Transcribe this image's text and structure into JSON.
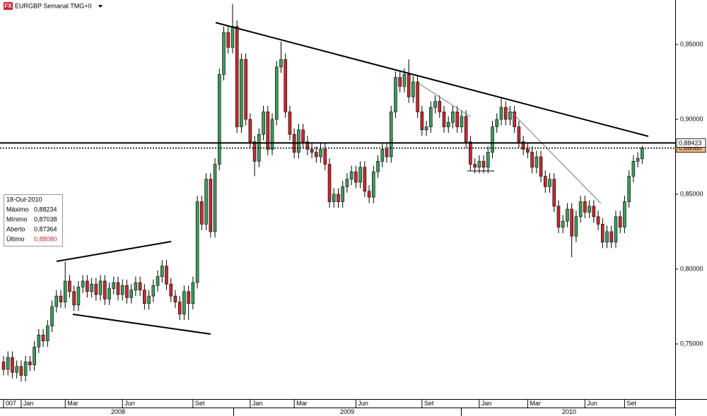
{
  "chart_data": {
    "type": "candlestick",
    "logo": "FX",
    "title": "EURGBP Semanal TMG+0",
    "categories": [
      "007",
      null,
      null,
      null,
      "Jan",
      null,
      null,
      null,
      null,
      null,
      null,
      null,
      null,
      null,
      "Mar",
      null,
      null,
      null,
      null,
      null,
      null,
      null,
      null,
      null,
      null,
      null,
      null,
      "Jun",
      null,
      null,
      null,
      null,
      null,
      null,
      null,
      null,
      null,
      null,
      null,
      null,
      null,
      null,
      null,
      "Set",
      null,
      null,
      null,
      null,
      null,
      null,
      null,
      null,
      null,
      null,
      null,
      null,
      "Jan",
      null,
      null,
      null,
      null,
      null,
      null,
      null,
      null,
      null,
      "Mar",
      null,
      null,
      null,
      null,
      null,
      null,
      null,
      null,
      null,
      null,
      null,
      null,
      null,
      "Jun",
      null,
      null,
      null,
      null,
      null,
      null,
      null,
      null,
      null,
      null,
      null,
      null,
      null,
      null,
      "Set",
      null,
      null,
      null,
      null,
      null,
      null,
      null,
      null,
      null,
      null,
      null,
      null,
      "Jan",
      null,
      null,
      null,
      null,
      null,
      null,
      null,
      null,
      null,
      null,
      "Mar",
      null,
      null,
      null,
      null,
      null,
      null,
      null,
      null,
      null,
      null,
      null,
      null,
      "Jun",
      null,
      null,
      null,
      null,
      null,
      null,
      null,
      null,
      "Set",
      null,
      null,
      null,
      null
    ],
    "years": [
      "2008",
      "2009",
      "2010"
    ],
    "open": [
      0.738,
      0.733,
      0.741,
      0.731,
      0.735,
      0.729,
      0.738,
      0.736,
      0.748,
      0.756,
      0.752,
      0.762,
      0.775,
      0.782,
      0.778,
      0.792,
      0.785,
      0.776,
      0.788,
      0.792,
      0.785,
      0.79,
      0.783,
      0.792,
      0.78,
      0.787,
      0.791,
      0.783,
      0.789,
      0.781,
      0.786,
      0.791,
      0.786,
      0.777,
      0.782,
      0.789,
      0.795,
      0.802,
      0.79,
      0.782,
      0.778,
      0.77,
      0.785,
      0.777,
      0.791,
      0.845,
      0.83,
      0.86,
      0.825,
      0.87,
      0.93,
      0.958,
      0.948,
      0.962,
      0.895,
      0.94,
      0.9,
      0.885,
      0.872,
      0.89,
      0.905,
      0.88,
      0.9,
      0.935,
      0.94,
      0.905,
      0.89,
      0.878,
      0.893,
      0.885,
      0.88,
      0.878,
      0.875,
      0.88,
      0.87,
      0.845,
      0.85,
      0.845,
      0.855,
      0.86,
      0.865,
      0.858,
      0.868,
      0.852,
      0.848,
      0.865,
      0.872,
      0.88,
      0.875,
      0.905,
      0.928,
      0.922,
      0.93,
      0.915,
      0.925,
      0.905,
      0.893,
      0.895,
      0.908,
      0.912,
      0.905,
      0.895,
      0.898,
      0.905,
      0.895,
      0.902,
      0.885,
      0.87,
      0.868,
      0.872,
      0.868,
      0.878,
      0.895,
      0.9,
      0.908,
      0.9,
      0.905,
      0.895,
      0.885,
      0.88,
      0.878,
      0.868,
      0.875,
      0.862,
      0.855,
      0.86,
      0.842,
      0.828,
      0.832,
      0.84,
      0.822,
      0.835,
      0.845,
      0.838,
      0.842,
      0.835,
      0.83,
      0.818,
      0.825,
      0.818,
      0.835,
      0.828,
      0.845,
      0.862,
      0.872,
      0.87364
    ],
    "high": [
      0.742,
      0.745,
      0.745,
      0.739,
      0.739,
      0.742,
      0.742,
      0.752,
      0.76,
      0.76,
      0.766,
      0.779,
      0.786,
      0.786,
      0.805,
      0.796,
      0.789,
      0.792,
      0.796,
      0.796,
      0.794,
      0.794,
      0.796,
      0.796,
      0.791,
      0.795,
      0.795,
      0.793,
      0.793,
      0.79,
      0.795,
      0.795,
      0.79,
      0.786,
      0.793,
      0.799,
      0.806,
      0.806,
      0.794,
      0.786,
      0.782,
      0.789,
      0.789,
      0.795,
      0.849,
      0.849,
      0.864,
      0.864,
      0.874,
      0.934,
      0.962,
      0.962,
      0.977,
      0.966,
      0.944,
      0.944,
      0.904,
      0.889,
      0.894,
      0.909,
      0.909,
      0.904,
      0.939,
      0.952,
      0.944,
      0.909,
      0.894,
      0.897,
      0.897,
      0.889,
      0.884,
      0.882,
      0.884,
      0.884,
      0.874,
      0.854,
      0.854,
      0.859,
      0.864,
      0.869,
      0.869,
      0.872,
      0.872,
      0.856,
      0.869,
      0.876,
      0.884,
      0.884,
      0.909,
      0.932,
      0.932,
      0.934,
      0.94,
      0.929,
      0.929,
      0.909,
      0.899,
      0.912,
      0.916,
      0.916,
      0.909,
      0.902,
      0.909,
      0.909,
      0.906,
      0.906,
      0.889,
      0.874,
      0.876,
      0.876,
      0.882,
      0.899,
      0.904,
      0.915,
      0.912,
      0.909,
      0.909,
      0.899,
      0.889,
      0.884,
      0.882,
      0.879,
      0.879,
      0.866,
      0.864,
      0.864,
      0.846,
      0.836,
      0.844,
      0.844,
      0.839,
      0.849,
      0.849,
      0.846,
      0.846,
      0.839,
      0.834,
      0.829,
      0.829,
      0.839,
      0.839,
      0.849,
      0.866,
      0.876,
      0.878,
      0.88234
    ],
    "low": [
      0.729,
      0.729,
      0.727,
      0.727,
      0.725,
      0.725,
      0.732,
      0.732,
      0.744,
      0.748,
      0.748,
      0.758,
      0.771,
      0.774,
      0.774,
      0.781,
      0.772,
      0.772,
      0.784,
      0.781,
      0.781,
      0.779,
      0.779,
      0.776,
      0.776,
      0.783,
      0.779,
      0.779,
      0.777,
      0.777,
      0.782,
      0.782,
      0.773,
      0.773,
      0.778,
      0.785,
      0.791,
      0.786,
      0.778,
      0.774,
      0.766,
      0.766,
      0.766,
      0.773,
      0.787,
      0.826,
      0.826,
      0.821,
      0.821,
      0.866,
      0.926,
      0.944,
      0.944,
      0.891,
      0.891,
      0.896,
      0.881,
      0.862,
      0.868,
      0.886,
      0.876,
      0.876,
      0.896,
      0.931,
      0.901,
      0.886,
      0.874,
      0.874,
      0.881,
      0.876,
      0.874,
      0.871,
      0.871,
      0.866,
      0.841,
      0.841,
      0.841,
      0.841,
      0.851,
      0.856,
      0.854,
      0.854,
      0.848,
      0.844,
      0.844,
      0.861,
      0.868,
      0.871,
      0.871,
      0.901,
      0.918,
      0.918,
      0.911,
      0.911,
      0.901,
      0.889,
      0.889,
      0.891,
      0.904,
      0.901,
      0.891,
      0.891,
      0.894,
      0.891,
      0.891,
      0.881,
      0.866,
      0.864,
      0.864,
      0.864,
      0.864,
      0.874,
      0.891,
      0.896,
      0.896,
      0.896,
      0.891,
      0.881,
      0.876,
      0.874,
      0.864,
      0.864,
      0.858,
      0.851,
      0.851,
      0.838,
      0.824,
      0.824,
      0.828,
      0.808,
      0.818,
      0.831,
      0.834,
      0.834,
      0.831,
      0.826,
      0.814,
      0.814,
      0.814,
      0.814,
      0.824,
      0.824,
      0.841,
      0.858,
      0.868,
      0.87038
    ],
    "close": [
      0.733,
      0.741,
      0.731,
      0.735,
      0.729,
      0.738,
      0.736,
      0.748,
      0.756,
      0.752,
      0.762,
      0.775,
      0.782,
      0.778,
      0.792,
      0.785,
      0.776,
      0.788,
      0.792,
      0.785,
      0.79,
      0.783,
      0.792,
      0.78,
      0.787,
      0.791,
      0.783,
      0.789,
      0.781,
      0.786,
      0.791,
      0.786,
      0.777,
      0.782,
      0.789,
      0.795,
      0.802,
      0.79,
      0.782,
      0.778,
      0.77,
      0.785,
      0.777,
      0.791,
      0.845,
      0.83,
      0.86,
      0.825,
      0.87,
      0.93,
      0.958,
      0.948,
      0.962,
      0.895,
      0.94,
      0.9,
      0.885,
      0.872,
      0.89,
      0.905,
      0.88,
      0.9,
      0.935,
      0.94,
      0.905,
      0.89,
      0.878,
      0.893,
      0.885,
      0.88,
      0.878,
      0.875,
      0.88,
      0.87,
      0.845,
      0.85,
      0.845,
      0.855,
      0.86,
      0.865,
      0.858,
      0.868,
      0.852,
      0.848,
      0.865,
      0.872,
      0.88,
      0.875,
      0.905,
      0.928,
      0.922,
      0.93,
      0.915,
      0.925,
      0.905,
      0.893,
      0.895,
      0.908,
      0.912,
      0.905,
      0.895,
      0.898,
      0.905,
      0.895,
      0.902,
      0.885,
      0.87,
      0.868,
      0.872,
      0.868,
      0.878,
      0.895,
      0.9,
      0.908,
      0.9,
      0.905,
      0.895,
      0.885,
      0.88,
      0.878,
      0.868,
      0.875,
      0.862,
      0.855,
      0.86,
      0.842,
      0.828,
      0.832,
      0.84,
      0.822,
      0.835,
      0.845,
      0.838,
      0.842,
      0.835,
      0.83,
      0.818,
      0.825,
      0.818,
      0.835,
      0.828,
      0.845,
      0.862,
      0.872,
      0.874,
      0.8808
    ],
    "up_color": "#3d9a5c",
    "down_color": "#c42a2e",
    "ylim": [
      0.7132,
      0.9797
    ],
    "yticks": [
      {
        "value": 0.75,
        "label": "0,75000"
      },
      {
        "value": 0.8,
        "label": "0,80000"
      },
      {
        "value": 0.85,
        "label": "0,85000"
      },
      {
        "value": 0.9,
        "label": "0,90000"
      },
      {
        "value": 0.95,
        "label": "0,95000"
      }
    ],
    "grid": false,
    "price_lines": [
      {
        "value": 0.8808,
        "label": "0,88080",
        "style": "dotted",
        "color": "#f3b87c"
      },
      {
        "value": 0.88423,
        "label": "0,88423",
        "style": "solid",
        "color": "#ffffff"
      }
    ],
    "info_box": {
      "date": "18-Out-2010",
      "rows": [
        [
          "Máximo",
          "0,88234"
        ],
        [
          "Mínimo",
          "0,87038"
        ],
        [
          "Aberto",
          "0,87364"
        ],
        [
          "Último",
          "0,88080"
        ]
      ]
    }
  }
}
